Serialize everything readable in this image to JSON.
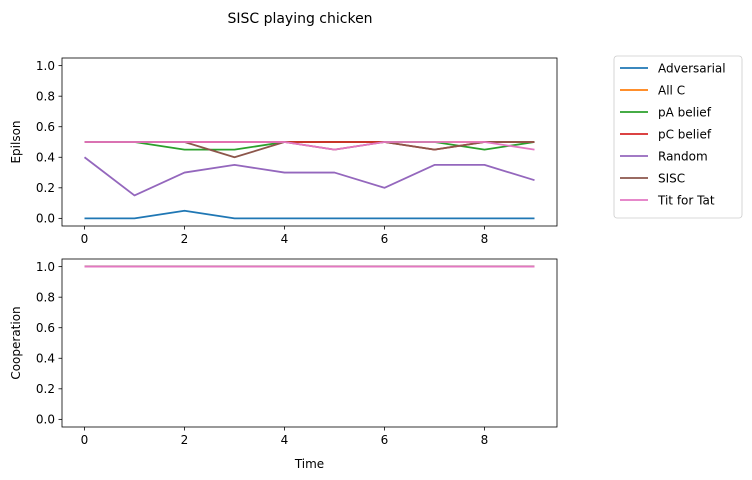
{
  "title": "SISC playing chicken",
  "chart_data": [
    {
      "type": "line",
      "ylabel": "Epilson",
      "xlabel": "",
      "xlim": [
        -0.45,
        9.45
      ],
      "ylim": [
        -0.05,
        1.05
      ],
      "xticks": [
        0,
        2,
        4,
        6,
        8
      ],
      "xtick_labels": [
        "0",
        "2",
        "4",
        "6",
        "8"
      ],
      "yticks": [
        0.0,
        0.2,
        0.4,
        0.6,
        0.8,
        1.0
      ],
      "ytick_labels": [
        "0.0",
        "0.2",
        "0.4",
        "0.6",
        "0.8",
        "1.0"
      ],
      "x": [
        0,
        1,
        2,
        3,
        4,
        5,
        6,
        7,
        8,
        9
      ],
      "series": [
        {
          "name": "Adversarial",
          "color": "#1f77b4",
          "values": [
            0.0,
            0.0,
            0.05,
            0.0,
            0.0,
            0.0,
            0.0,
            0.0,
            0.0,
            0.0
          ]
        },
        {
          "name": "All C",
          "color": "#ff7f0e",
          "values": [
            0.5,
            0.5,
            0.5,
            0.5,
            0.5,
            0.5,
            0.5,
            0.5,
            0.5,
            0.5
          ]
        },
        {
          "name": "pA belief",
          "color": "#2ca02c",
          "values": [
            0.5,
            0.5,
            0.45,
            0.45,
            0.5,
            0.5,
            0.5,
            0.5,
            0.45,
            0.5
          ]
        },
        {
          "name": "pC belief",
          "color": "#d62728",
          "values": [
            0.5,
            0.5,
            0.5,
            0.5,
            0.5,
            0.5,
            0.5,
            0.45,
            0.5,
            0.5
          ]
        },
        {
          "name": "Random",
          "color": "#9467bd",
          "values": [
            0.4,
            0.15,
            0.3,
            0.35,
            0.3,
            0.3,
            0.2,
            0.35,
            0.35,
            0.25
          ]
        },
        {
          "name": "SISC",
          "color": "#8c564b",
          "values": [
            0.5,
            0.5,
            0.5,
            0.4,
            0.5,
            0.45,
            0.5,
            0.45,
            0.5,
            0.5
          ]
        },
        {
          "name": "Tit for Tat",
          "color": "#e377c2",
          "values": [
            0.5,
            0.5,
            0.5,
            0.5,
            0.5,
            0.45,
            0.5,
            0.5,
            0.5,
            0.45
          ]
        }
      ]
    },
    {
      "type": "line",
      "ylabel": "Cooperation",
      "xlabel": "Time",
      "xlim": [
        -0.45,
        9.45
      ],
      "ylim": [
        -0.05,
        1.05
      ],
      "xticks": [
        0,
        2,
        4,
        6,
        8
      ],
      "xtick_labels": [
        "0",
        "2",
        "4",
        "6",
        "8"
      ],
      "yticks": [
        0.0,
        0.2,
        0.4,
        0.6,
        0.8,
        1.0
      ],
      "ytick_labels": [
        "0.0",
        "0.2",
        "0.4",
        "0.6",
        "0.8",
        "1.0"
      ],
      "x": [
        0,
        1,
        2,
        3,
        4,
        5,
        6,
        7,
        8,
        9
      ],
      "series": [
        {
          "name": "Adversarial",
          "color": "#1f77b4",
          "values": [
            1,
            1,
            1,
            1,
            1,
            1,
            1,
            1,
            1,
            1
          ]
        },
        {
          "name": "All C",
          "color": "#ff7f0e",
          "values": [
            1,
            1,
            1,
            1,
            1,
            1,
            1,
            1,
            1,
            1
          ]
        },
        {
          "name": "pA belief",
          "color": "#2ca02c",
          "values": [
            1,
            1,
            1,
            1,
            1,
            1,
            1,
            1,
            1,
            1
          ]
        },
        {
          "name": "pC belief",
          "color": "#d62728",
          "values": [
            1,
            1,
            1,
            1,
            1,
            1,
            1,
            1,
            1,
            1
          ]
        },
        {
          "name": "Random",
          "color": "#9467bd",
          "values": [
            1,
            1,
            1,
            1,
            1,
            1,
            1,
            1,
            1,
            1
          ]
        },
        {
          "name": "SISC",
          "color": "#8c564b",
          "values": [
            1,
            1,
            1,
            1,
            1,
            1,
            1,
            1,
            1,
            1
          ]
        },
        {
          "name": "Tit for Tat",
          "color": "#e377c2",
          "values": [
            1,
            1,
            1,
            1,
            1,
            1,
            1,
            1,
            1,
            1
          ]
        }
      ]
    }
  ],
  "legend": {
    "position": "outside-right-top",
    "items": [
      {
        "label": "Adversarial",
        "color": "#1f77b4"
      },
      {
        "label": "All C",
        "color": "#ff7f0e"
      },
      {
        "label": "pA belief",
        "color": "#2ca02c"
      },
      {
        "label": "pC belief",
        "color": "#d62728"
      },
      {
        "label": "Random",
        "color": "#9467bd"
      },
      {
        "label": "SISC",
        "color": "#8c564b"
      },
      {
        "label": "Tit for Tat",
        "color": "#e377c2"
      }
    ]
  }
}
